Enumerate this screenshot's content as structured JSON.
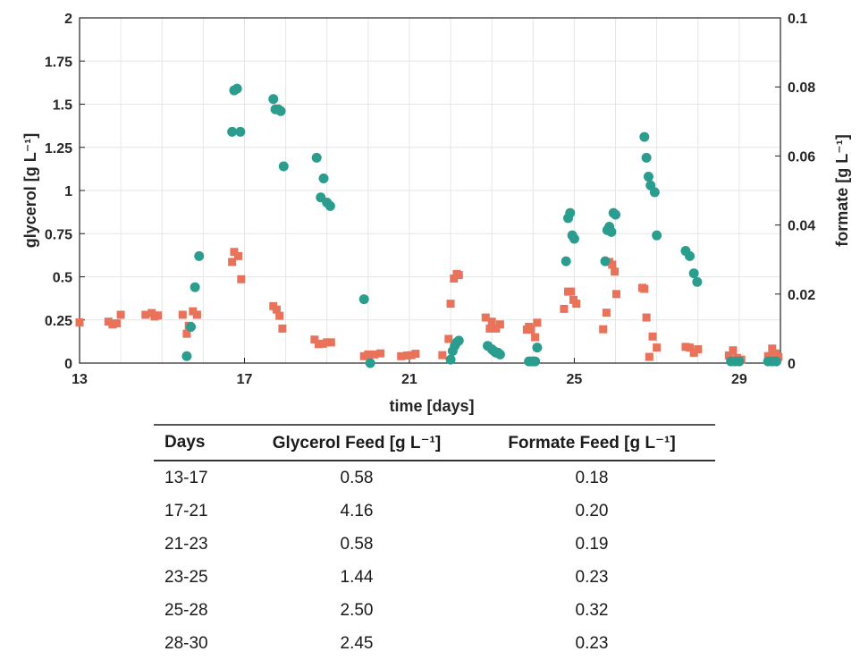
{
  "chart_data": {
    "type": "scatter",
    "xlabel": "time [days]",
    "ylabel_left": "glycerol [g L⁻¹]",
    "ylabel_right": "formate [g L⁻¹]",
    "xlim": [
      13,
      30
    ],
    "ylim_left": [
      0,
      2
    ],
    "ylim_right": [
      0,
      0.1
    ],
    "x_ticks": [
      "13",
      "17",
      "21",
      "25",
      "29"
    ],
    "y_left_ticks": [
      "0",
      "0.25",
      "0.5",
      "0.75",
      "1",
      "1.25",
      "1.5",
      "1.75",
      "2"
    ],
    "y_right_ticks": [
      "0",
      "0.02",
      "0.04",
      "0.06",
      "0.08",
      "0.1"
    ],
    "grid": true,
    "series": [
      {
        "axis": "left",
        "marker": "circle",
        "color": "#2a9d8f",
        "points": [
          [
            15.6,
            0.04
          ],
          [
            15.7,
            0.21
          ],
          [
            15.8,
            0.44
          ],
          [
            15.9,
            0.62
          ],
          [
            16.7,
            1.34
          ],
          [
            16.75,
            1.58
          ],
          [
            16.82,
            1.59
          ],
          [
            16.9,
            1.34
          ],
          [
            17.7,
            1.53
          ],
          [
            17.75,
            1.47
          ],
          [
            17.82,
            1.47
          ],
          [
            17.88,
            1.46
          ],
          [
            17.95,
            1.14
          ],
          [
            18.75,
            1.19
          ],
          [
            18.85,
            0.96
          ],
          [
            18.92,
            1.07
          ],
          [
            19.0,
            0.93
          ],
          [
            19.08,
            0.91
          ],
          [
            19.9,
            0.37
          ],
          [
            20.05,
            0.0
          ],
          [
            22.0,
            0.02
          ],
          [
            22.05,
            0.07
          ],
          [
            22.1,
            0.1
          ],
          [
            22.15,
            0.12
          ],
          [
            22.2,
            0.13
          ],
          [
            22.9,
            0.1
          ],
          [
            23.0,
            0.08
          ],
          [
            23.05,
            0.07
          ],
          [
            23.1,
            0.06
          ],
          [
            23.15,
            0.06
          ],
          [
            23.2,
            0.05
          ],
          [
            23.9,
            0.01
          ],
          [
            23.95,
            0.01
          ],
          [
            24.0,
            0.01
          ],
          [
            24.05,
            0.01
          ],
          [
            24.1,
            0.09
          ],
          [
            24.8,
            0.59
          ],
          [
            24.85,
            0.84
          ],
          [
            24.9,
            0.87
          ],
          [
            24.95,
            0.74
          ],
          [
            25.0,
            0.72
          ],
          [
            25.75,
            0.59
          ],
          [
            25.8,
            0.77
          ],
          [
            25.85,
            0.79
          ],
          [
            25.9,
            0.76
          ],
          [
            25.95,
            0.87
          ],
          [
            26.0,
            0.86
          ],
          [
            26.7,
            1.31
          ],
          [
            26.75,
            1.19
          ],
          [
            26.8,
            1.08
          ],
          [
            26.85,
            1.03
          ],
          [
            26.95,
            0.99
          ],
          [
            27.0,
            0.74
          ],
          [
            27.7,
            0.65
          ],
          [
            27.8,
            0.62
          ],
          [
            27.9,
            0.52
          ],
          [
            27.98,
            0.47
          ],
          [
            28.8,
            0.01
          ],
          [
            28.9,
            0.01
          ],
          [
            29.0,
            0.01
          ],
          [
            29.7,
            0.01
          ],
          [
            29.8,
            0.01
          ],
          [
            29.9,
            0.01
          ]
        ]
      },
      {
        "axis": "right",
        "marker": "square",
        "color": "#e8735a",
        "points": [
          [
            13.0,
            0.0118
          ],
          [
            13.7,
            0.012
          ],
          [
            13.8,
            0.0112
          ],
          [
            13.9,
            0.0115
          ],
          [
            14.0,
            0.014
          ],
          [
            14.6,
            0.014
          ],
          [
            14.75,
            0.0145
          ],
          [
            14.82,
            0.0135
          ],
          [
            14.9,
            0.0138
          ],
          [
            15.5,
            0.014
          ],
          [
            15.6,
            0.0085
          ],
          [
            15.65,
            0.0108
          ],
          [
            15.75,
            0.015
          ],
          [
            15.85,
            0.014
          ],
          [
            16.7,
            0.0293
          ],
          [
            16.75,
            0.0322
          ],
          [
            16.85,
            0.031
          ],
          [
            16.92,
            0.0243
          ],
          [
            17.7,
            0.0165
          ],
          [
            17.78,
            0.0155
          ],
          [
            17.85,
            0.0137
          ],
          [
            17.92,
            0.01
          ],
          [
            18.7,
            0.0068
          ],
          [
            18.8,
            0.0055
          ],
          [
            18.9,
            0.0056
          ],
          [
            19.0,
            0.006
          ],
          [
            19.1,
            0.006
          ],
          [
            19.9,
            0.002
          ],
          [
            20.0,
            0.0025
          ],
          [
            20.15,
            0.0025
          ],
          [
            20.3,
            0.0028
          ],
          [
            20.8,
            0.002
          ],
          [
            20.95,
            0.0022
          ],
          [
            21.05,
            0.0023
          ],
          [
            21.15,
            0.0027
          ],
          [
            21.8,
            0.0023
          ],
          [
            21.95,
            0.007
          ],
          [
            22.0,
            0.0172
          ],
          [
            22.08,
            0.0245
          ],
          [
            22.15,
            0.0258
          ],
          [
            22.2,
            0.0255
          ],
          [
            22.85,
            0.0132
          ],
          [
            22.95,
            0.01
          ],
          [
            23.0,
            0.012
          ],
          [
            23.1,
            0.01
          ],
          [
            23.2,
            0.0112
          ],
          [
            23.85,
            0.0097
          ],
          [
            23.9,
            0.0105
          ],
          [
            23.95,
            0.0097
          ],
          [
            24.05,
            0.0075
          ],
          [
            24.1,
            0.0117
          ],
          [
            24.75,
            0.0157
          ],
          [
            24.85,
            0.0207
          ],
          [
            24.92,
            0.0207
          ],
          [
            24.98,
            0.0183
          ],
          [
            25.05,
            0.0172
          ],
          [
            25.7,
            0.0098
          ],
          [
            25.78,
            0.0146
          ],
          [
            25.85,
            0.0293
          ],
          [
            25.92,
            0.0285
          ],
          [
            25.98,
            0.0265
          ],
          [
            26.02,
            0.02
          ],
          [
            26.65,
            0.0218
          ],
          [
            26.7,
            0.0215
          ],
          [
            26.75,
            0.0132
          ],
          [
            26.82,
            0.0018
          ],
          [
            26.9,
            0.0077
          ],
          [
            27.0,
            0.0045
          ],
          [
            27.7,
            0.0047
          ],
          [
            27.8,
            0.0045
          ],
          [
            27.9,
            0.003
          ],
          [
            28.0,
            0.004
          ],
          [
            28.75,
            0.0022
          ],
          [
            28.85,
            0.0037
          ],
          [
            28.95,
            0.0015
          ],
          [
            29.05,
            0.001
          ],
          [
            29.7,
            0.002
          ],
          [
            29.8,
            0.0042
          ],
          [
            29.88,
            0.0028
          ],
          [
            29.95,
            0.0018
          ]
        ]
      }
    ]
  },
  "table": {
    "headers": [
      "Days",
      "Glycerol Feed [g L⁻¹]",
      "Formate Feed [g L⁻¹]"
    ],
    "rows": [
      [
        "13-17",
        "0.58",
        "0.18"
      ],
      [
        "17-21",
        "4.16",
        "0.20"
      ],
      [
        "21-23",
        "0.58",
        "0.19"
      ],
      [
        "23-25",
        "1.44",
        "0.23"
      ],
      [
        "25-28",
        "2.50",
        "0.32"
      ],
      [
        "28-30",
        "2.45",
        "0.23"
      ]
    ]
  }
}
